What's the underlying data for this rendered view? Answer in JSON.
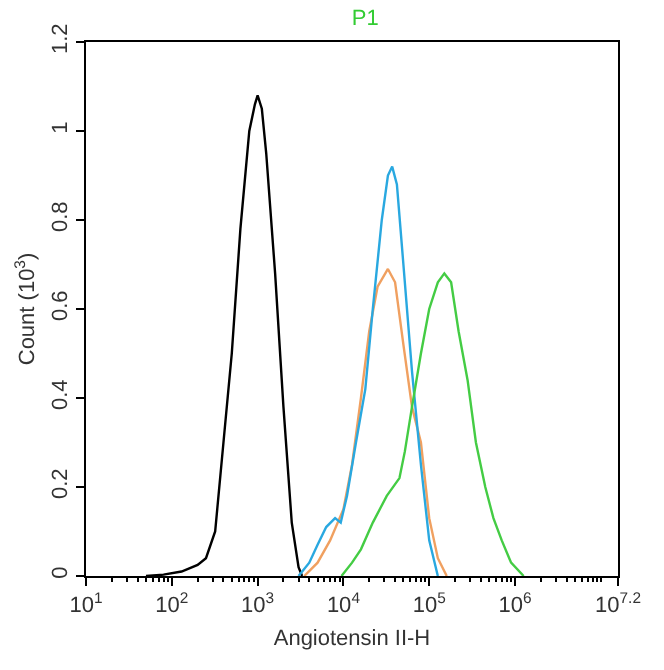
{
  "chart_data": {
    "type": "line",
    "title": "P1",
    "xlabel": "Angiotensin II-H",
    "ylabel": "Count (10$^{3}$)",
    "log": "x",
    "marker": "none",
    "line_style": "solid",
    "xlim": [
      10,
      15848932
    ],
    "xticks": [
      {
        "value": 10,
        "label": "10$^{1}$"
      },
      {
        "value": 100,
        "label": "10$^{2}$"
      },
      {
        "value": 1000,
        "label": "10$^{3}$"
      },
      {
        "value": 10000,
        "label": "10$^{4}$"
      },
      {
        "value": 100000,
        "label": "10$^{5}$"
      },
      {
        "value": 1000000,
        "label": "10$^{6}$"
      },
      {
        "value": 15848932,
        "label": "10$^{7.2}$"
      }
    ],
    "ylim": [
      0,
      1.2
    ],
    "yticks": [
      0,
      0.2,
      0.4,
      0.6,
      0.8,
      1,
      1.2
    ],
    "series": [
      {
        "color": "#000000",
        "x": [
          50,
          80,
          130,
          200,
          250,
          320,
          400,
          500,
          630,
          800,
          930,
          1000,
          1120,
          1260,
          1600,
          2000,
          2500,
          3000,
          3300
        ],
        "values": [
          0,
          0.003,
          0.01,
          0.025,
          0.04,
          0.1,
          0.3,
          0.5,
          0.78,
          1.0,
          1.06,
          1.08,
          1.05,
          0.95,
          0.68,
          0.38,
          0.12,
          0.02,
          0
        ]
      },
      {
        "color": "#f0a060",
        "x": [
          3500,
          5000,
          7000,
          10000,
          12600,
          16000,
          20000,
          25000,
          33000,
          40000,
          50000,
          63000,
          80000,
          100000,
          126000,
          160000
        ],
        "values": [
          0,
          0.03,
          0.08,
          0.15,
          0.25,
          0.4,
          0.55,
          0.65,
          0.69,
          0.66,
          0.52,
          0.38,
          0.3,
          0.13,
          0.04,
          0
        ]
      },
      {
        "color": "#29a8e0",
        "x": [
          3000,
          4000,
          5000,
          6300,
          8000,
          9300,
          11000,
          14000,
          18000,
          22000,
          28000,
          33000,
          37000,
          42000,
          50000,
          63000,
          80000,
          100000,
          126000
        ],
        "values": [
          0,
          0.03,
          0.07,
          0.11,
          0.13,
          0.12,
          0.18,
          0.3,
          0.42,
          0.6,
          0.8,
          0.9,
          0.92,
          0.88,
          0.7,
          0.46,
          0.25,
          0.08,
          0
        ]
      },
      {
        "color": "#44cc44",
        "x": [
          9500,
          12600,
          16000,
          22000,
          32000,
          45000,
          52000,
          63000,
          80000,
          100000,
          126000,
          150000,
          180000,
          220000,
          280000,
          350000,
          450000,
          560000,
          700000,
          900000,
          1260000
        ],
        "values": [
          0,
          0.03,
          0.06,
          0.12,
          0.18,
          0.22,
          0.28,
          0.38,
          0.5,
          0.6,
          0.66,
          0.68,
          0.66,
          0.55,
          0.44,
          0.3,
          0.2,
          0.13,
          0.08,
          0.03,
          0
        ]
      }
    ]
  }
}
